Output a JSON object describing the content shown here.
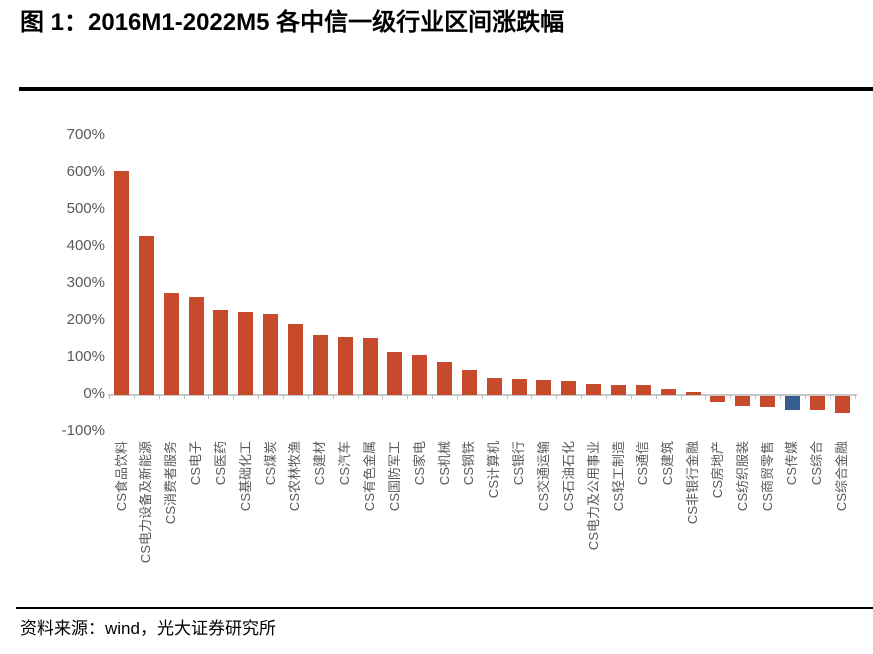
{
  "figure": {
    "title": "图 1：2016M1-2022M5 各中信一级行业区间涨跌幅",
    "source": "资料来源：wind，光大证券研究所"
  },
  "colors": {
    "bar_default": "#C64A2B",
    "bar_highlight": "#365F91",
    "axis_label": "#595959",
    "axis_line": "#C9C9C9",
    "rule": "#000000"
  },
  "chart_data": {
    "type": "bar",
    "title": "2016M1-2022M5 各中信一级行业区间涨跌幅",
    "categories": [
      "CS食品饮料",
      "CS电力设备及新能源",
      "CS消费者服务",
      "CS电子",
      "CS医药",
      "CS基础化工",
      "CS煤炭",
      "CS农林牧渔",
      "CS建材",
      "CS汽车",
      "CS有色金属",
      "CS国防军工",
      "CS家电",
      "CS机械",
      "CS钢铁",
      "CS计算机",
      "CS银行",
      "CS交通运输",
      "CS石油石化",
      "CS电力及公用事业",
      "CS轻工制造",
      "CS通信",
      "CS建筑",
      "CS非银行金融",
      "CS房地产",
      "CS纺织服装",
      "CS商贸零售",
      "CS传媒",
      "CS综合",
      "CS综合金融"
    ],
    "values": [
      605,
      430,
      275,
      266,
      231,
      225,
      219,
      191,
      161,
      158,
      154,
      117,
      109,
      90,
      67,
      47,
      42,
      41,
      37,
      31,
      27,
      26,
      16,
      7,
      -17,
      -26,
      -30,
      -37,
      -38,
      -46
    ],
    "unit": "%",
    "bar_color": "#C64A2B",
    "highlight_category": "CS传媒",
    "highlight_color": "#365F91",
    "xlabel": "",
    "ylabel": "",
    "ylim": [
      -100,
      700
    ],
    "yticks": [
      700,
      600,
      500,
      400,
      300,
      200,
      100,
      0,
      -100
    ],
    "ytick_suffix": "%",
    "grid": false,
    "legend": false,
    "sort": "descending"
  }
}
